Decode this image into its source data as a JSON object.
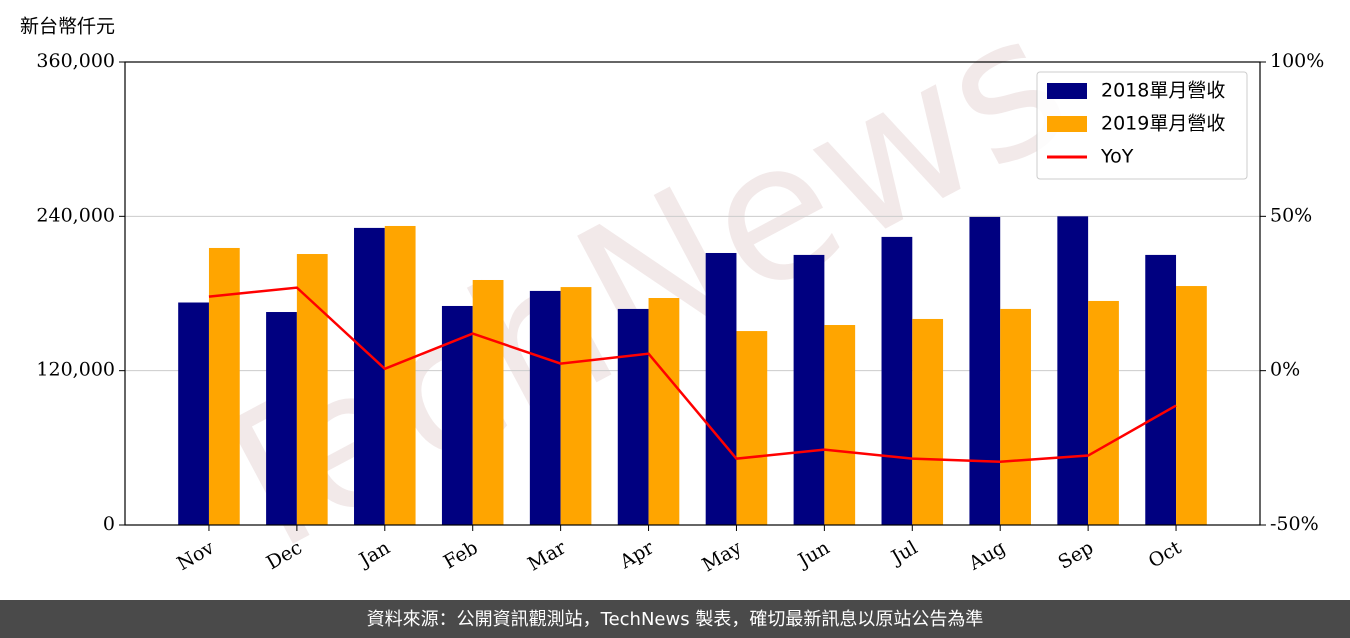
{
  "chart_data": {
    "type": "bar_line",
    "y_unit": "新台幣仟元",
    "categories": [
      "Nov",
      "Dec",
      "Jan",
      "Feb",
      "Mar",
      "Apr",
      "May",
      "Jun",
      "Jul",
      "Aug",
      "Sep",
      "Oct"
    ],
    "series": [
      {
        "name": "2018單月營收",
        "color": "#000080",
        "kind": "bar",
        "values": [
          173000,
          165600,
          231000,
          170300,
          182000,
          168000,
          211500,
          210000,
          224000,
          239500,
          240000,
          210000
        ]
      },
      {
        "name": "2019單月營收",
        "color": "#ffa500",
        "kind": "bar",
        "values": [
          215400,
          210700,
          232500,
          190500,
          185000,
          176500,
          150800,
          155500,
          160200,
          168000,
          174200,
          185800
        ]
      },
      {
        "name": "YoY",
        "color": "#ff0000",
        "kind": "line",
        "axis": "y2",
        "values": [
          24,
          26.9,
          0.6,
          12,
          2.3,
          5.5,
          -28.5,
          -25.6,
          -28.5,
          -29.5,
          -27.5,
          -11.3
        ]
      }
    ],
    "ylim": [
      0,
      360000
    ],
    "yticks": [
      {
        "value": 0,
        "label": "0"
      },
      {
        "value": 120000,
        "label": "120,000"
      },
      {
        "value": 240000,
        "label": "240,000"
      },
      {
        "value": 360000,
        "label": "360,000"
      }
    ],
    "y2lim": [
      -50,
      100
    ],
    "y2ticks": [
      {
        "value": -50,
        "label": "-50%"
      },
      {
        "value": 0,
        "label": "0%"
      },
      {
        "value": 50,
        "label": "50%"
      },
      {
        "value": 100,
        "label": "100%"
      }
    ],
    "grid": true,
    "legend": "upper right",
    "watermark": "TechNews",
    "footer": "資料來源：公開資訊觀測站，TechNews 製表，確切最新訊息以原站公告為準"
  }
}
